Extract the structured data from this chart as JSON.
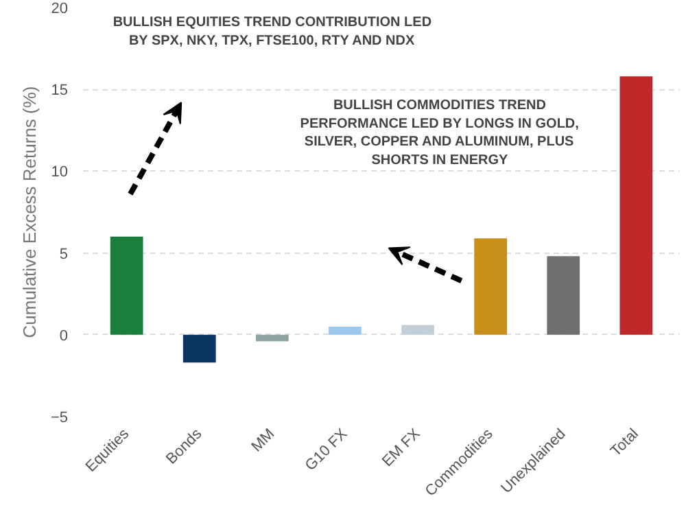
{
  "chart_data": {
    "type": "bar",
    "ylabel": "Cumulative Excess Returns (%)",
    "categories": [
      "Equities",
      "Bonds",
      "MM",
      "G10 FX",
      "EM FX",
      "Commodities",
      "Unexplained",
      "Total"
    ],
    "values": [
      6.0,
      -1.7,
      -0.4,
      0.5,
      0.6,
      5.9,
      4.8,
      15.8
    ],
    "colors": [
      "#1a7f3c",
      "#0b3563",
      "#8fa3a3",
      "#9dc8ee",
      "#c1cfd8",
      "#c8901a",
      "#707070",
      "#c0282a"
    ],
    "ylim": [
      -5,
      20
    ],
    "yticks": [
      -5,
      0,
      5,
      10,
      15,
      20
    ],
    "grid": "y",
    "annotations": [
      "BULLISH EQUITIES TREND CONTRIBUTION LED\nBY SPX, NKY, TPX, FTSE100, RTY AND NDX",
      "BULLISH COMMODITIES TREND\nPERFORMANCE LED BY LONGS IN GOLD,\nSILVER, COPPER AND ALUMINUM, PLUS\nSHORTS IN ENERGY"
    ]
  }
}
